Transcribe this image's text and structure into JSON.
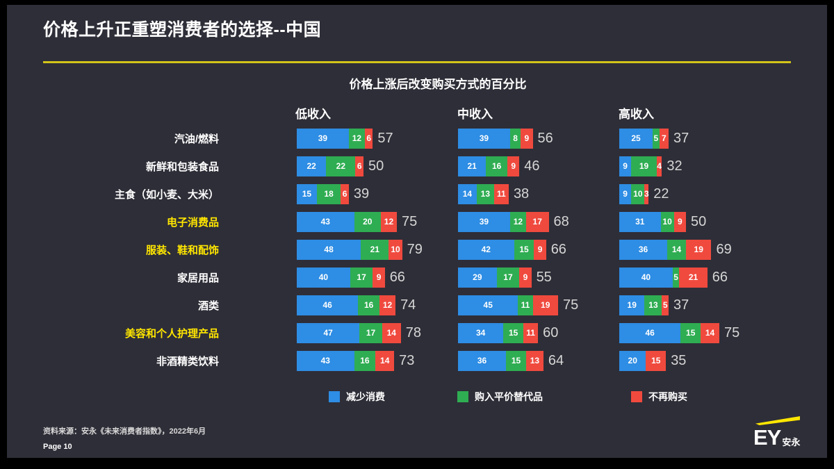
{
  "slide": {
    "title": "价格上升正重塑消费者的选择--中国",
    "source": "资料来源：安永《未来消费者指数》，2022年6月",
    "page": "Page 10",
    "logo": {
      "text": "EY",
      "suffix": "安永"
    }
  },
  "colors": {
    "slide_background": "#2e2e38",
    "outer_frame": "#000000",
    "accent_yellow": "#ffe600",
    "title_rule": "#d2c41a",
    "bar_blue": "#2e8de4",
    "bar_green": "#2fad52",
    "bar_red": "#f04a3e",
    "total_text": "#d6d6d6",
    "text_white": "#ffffff"
  },
  "legend": [
    {
      "label": "减少消费",
      "color": "#2e8de4"
    },
    {
      "label": "购入平价替代品",
      "color": "#2fad52"
    },
    {
      "label": "不再购买",
      "color": "#f04a3e"
    }
  ],
  "chart_data": {
    "type": "bar",
    "variant": "horizontal_stacked_grouped",
    "title": "价格上涨后改变购买方式的百分比",
    "unit": "percent",
    "xlim": [
      0,
      100
    ],
    "grid": false,
    "legend_position": "bottom",
    "series_names": [
      "减少消费",
      "购入平价替代品",
      "不再购买"
    ],
    "groups": [
      "低收入",
      "中收入",
      "高收入"
    ],
    "categories": [
      "汽油/燃料",
      "新鲜和包装食品",
      "主食（如小麦、大米）",
      "电子消费品",
      "服装、鞋和配饰",
      "家居用品",
      "酒类",
      "美容和个人护理产品",
      "非酒精类饮料"
    ],
    "highlighted_categories": [
      "电子消费品",
      "服装、鞋和配饰",
      "美容和个人护理产品"
    ],
    "rows": [
      {
        "category": "汽油/燃料",
        "highlighted": false,
        "values": {
          "低收入": [
            39,
            12,
            6
          ],
          "中收入": [
            39,
            8,
            9
          ],
          "高收入": [
            25,
            5,
            7
          ]
        },
        "totals": {
          "低收入": 57,
          "中收入": 56,
          "高收入": 37
        }
      },
      {
        "category": "新鲜和包装食品",
        "highlighted": false,
        "values": {
          "低收入": [
            22,
            22,
            6
          ],
          "中收入": [
            21,
            16,
            9
          ],
          "高收入": [
            9,
            19,
            4
          ]
        },
        "totals": {
          "低收入": 50,
          "中收入": 46,
          "高收入": 32
        }
      },
      {
        "category": "主食（如小麦、大米）",
        "highlighted": false,
        "values": {
          "低收入": [
            15,
            18,
            6
          ],
          "中收入": [
            14,
            13,
            11
          ],
          "高收入": [
            9,
            10,
            3
          ]
        },
        "totals": {
          "低收入": 39,
          "中收入": 38,
          "高收入": 22
        }
      },
      {
        "category": "电子消费品",
        "highlighted": true,
        "values": {
          "低收入": [
            43,
            20,
            12
          ],
          "中收入": [
            39,
            12,
            17
          ],
          "高收入": [
            31,
            10,
            9
          ]
        },
        "totals": {
          "低收入": 75,
          "中收入": 68,
          "高收入": 50
        }
      },
      {
        "category": "服装、鞋和配饰",
        "highlighted": true,
        "values": {
          "低收入": [
            48,
            21,
            10
          ],
          "中收入": [
            42,
            15,
            9
          ],
          "高收入": [
            36,
            14,
            19
          ]
        },
        "totals": {
          "低收入": 79,
          "中收入": 66,
          "高收入": 69
        }
      },
      {
        "category": "家居用品",
        "highlighted": false,
        "values": {
          "低收入": [
            40,
            17,
            9
          ],
          "中收入": [
            29,
            17,
            9
          ],
          "高收入": [
            40,
            5,
            21
          ]
        },
        "totals": {
          "低收入": 66,
          "中收入": 55,
          "高收入": 66
        }
      },
      {
        "category": "酒类",
        "highlighted": false,
        "values": {
          "低收入": [
            46,
            16,
            12
          ],
          "中收入": [
            45,
            11,
            19
          ],
          "高收入": [
            19,
            13,
            5
          ]
        },
        "totals": {
          "低收入": 74,
          "中收入": 75,
          "高收入": 37
        }
      },
      {
        "category": "美容和个人护理产品",
        "highlighted": true,
        "values": {
          "低收入": [
            47,
            17,
            14
          ],
          "中收入": [
            34,
            15,
            11
          ],
          "高收入": [
            46,
            15,
            14
          ]
        },
        "totals": {
          "低收入": 78,
          "中收入": 60,
          "高收入": 75
        }
      },
      {
        "category": "非酒精类饮料",
        "highlighted": false,
        "values": {
          "低收入": [
            43,
            16,
            14
          ],
          "中收入": [
            36,
            15,
            13
          ],
          "高收入": [
            20,
            0,
            15
          ]
        },
        "totals": {
          "低收入": 73,
          "中收入": 64,
          "高收入": 35
        }
      }
    ]
  }
}
